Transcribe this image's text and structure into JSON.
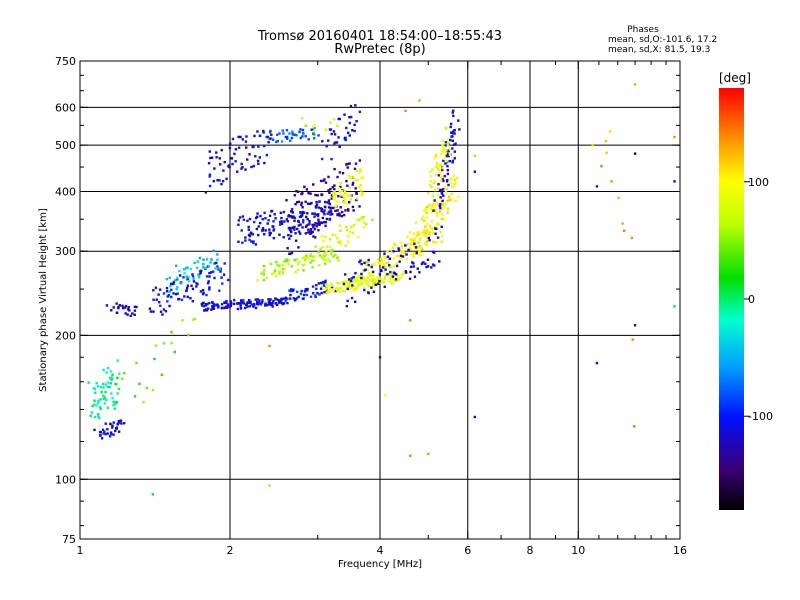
{
  "chart_data": {
    "type": "scatter",
    "title": "Tromsø 20160401 18:54:00–18:55:43",
    "subtitle": "RwPretec (8p)",
    "xlabel": "Frequency [MHz]",
    "ylabel": "Stationary phase Virtual Height [km]",
    "x_scale": "log",
    "y_scale": "log",
    "xlim": [
      1,
      16
    ],
    "ylim": [
      75,
      750
    ],
    "x_ticks": [
      1,
      2,
      4,
      6,
      8,
      10,
      16
    ],
    "x_tick_labels": [
      "1",
      "2",
      "4",
      "6",
      "8",
      "10",
      "16"
    ],
    "y_ticks": [
      75,
      100,
      200,
      300,
      400,
      500,
      600,
      750
    ],
    "y_tick_labels": [
      "75",
      "100",
      "200",
      "300",
      "400",
      "500",
      "600",
      "750"
    ],
    "grid": true,
    "stats": {
      "heading": "Phases",
      "line_o": "mean, sd,O:-101.6, 17.2",
      "line_x": "mean, sd,X:  81.5, 19.3"
    },
    "colorbar": {
      "label": "[deg]",
      "range": [
        -180,
        180
      ],
      "ticks": [
        100,
        0,
        -100
      ],
      "tick_labels": [
        "100",
        "0",
        "-100"
      ],
      "placement": "right"
    },
    "color_encoding": "phase [deg]",
    "traces": [
      {
        "x_start": 1.05,
        "x_end": 1.2,
        "h_start": 145,
        "h_end": 160,
        "h_scatter": 18,
        "phase": -10,
        "n": 60
      },
      {
        "x_start": 1.08,
        "x_end": 1.22,
        "h_start": 125,
        "h_end": 130,
        "h_scatter": 4,
        "phase": -110,
        "n": 35
      },
      {
        "x_start": 1.15,
        "x_end": 1.3,
        "h_start": 230,
        "h_end": 225,
        "h_scatter": 6,
        "phase": -120,
        "n": 25
      },
      {
        "x_start": 1.4,
        "x_end": 1.95,
        "h_start": 235,
        "h_end": 270,
        "h_scatter": 18,
        "phase": -105,
        "n": 90
      },
      {
        "x_start": 1.5,
        "x_end": 1.9,
        "h_start": 260,
        "h_end": 290,
        "h_scatter": 15,
        "phase": -40,
        "n": 40
      },
      {
        "x_start": 1.75,
        "x_end": 2.6,
        "h_start": 230,
        "h_end": 235,
        "h_scatter": 5,
        "phase": -110,
        "n": 120
      },
      {
        "x_start": 2.6,
        "x_end": 3.2,
        "h_start": 240,
        "h_end": 255,
        "h_scatter": 8,
        "phase": -100,
        "n": 50
      },
      {
        "x_start": 2.3,
        "x_end": 3.3,
        "h_start": 270,
        "h_end": 295,
        "h_scatter": 10,
        "phase": 60,
        "n": 80
      },
      {
        "x_start": 3.1,
        "x_end": 4.4,
        "h_start": 250,
        "h_end": 265,
        "h_scatter": 6,
        "phase": 85,
        "n": 120
      },
      {
        "x_start": 3.5,
        "x_end": 5.3,
        "h_start": 260,
        "h_end": 330,
        "h_scatter": 14,
        "phase": 95,
        "n": 120
      },
      {
        "x_start": 4.6,
        "x_end": 5.7,
        "h_start": 300,
        "h_end": 410,
        "h_scatter": 25,
        "phase": 100,
        "n": 90
      },
      {
        "x_start": 5.2,
        "x_end": 5.7,
        "h_start": 350,
        "h_end": 560,
        "h_scatter": 40,
        "phase": -110,
        "n": 70
      },
      {
        "x_start": 5.0,
        "x_end": 5.5,
        "h_start": 380,
        "h_end": 520,
        "h_scatter": 35,
        "phase": 95,
        "n": 50
      },
      {
        "x_start": 3.4,
        "x_end": 5.2,
        "h_start": 255,
        "h_end": 300,
        "h_scatter": 25,
        "phase": -115,
        "n": 90
      },
      {
        "x_start": 2.1,
        "x_end": 3.2,
        "h_start": 330,
        "h_end": 360,
        "h_scatter": 25,
        "phase": -110,
        "n": 140
      },
      {
        "x_start": 2.6,
        "x_end": 3.6,
        "h_start": 340,
        "h_end": 420,
        "h_scatter": 50,
        "phase": -130,
        "n": 140
      },
      {
        "x_start": 3.2,
        "x_end": 3.7,
        "h_start": 380,
        "h_end": 430,
        "h_scatter": 30,
        "phase": 90,
        "n": 45
      },
      {
        "x_start": 3.0,
        "x_end": 3.8,
        "h_start": 310,
        "h_end": 340,
        "h_scatter": 20,
        "phase": 75,
        "n": 40
      },
      {
        "x_start": 2.4,
        "x_end": 3.0,
        "h_start": 520,
        "h_end": 530,
        "h_scatter": 15,
        "phase": -75,
        "n": 40
      },
      {
        "x_start": 1.8,
        "x_end": 2.4,
        "h_start": 440,
        "h_end": 510,
        "h_scatter": 45,
        "phase": -110,
        "n": 70
      },
      {
        "x_start": 3.1,
        "x_end": 3.6,
        "h_start": 500,
        "h_end": 580,
        "h_scatter": 40,
        "phase": -110,
        "n": 35
      },
      {
        "x_start": 2.8,
        "x_end": 3.3,
        "h_start": 550,
        "h_end": 560,
        "h_scatter": 20,
        "phase": 70,
        "n": 10
      },
      {
        "x_start": 10.8,
        "x_end": 13.2,
        "h_start": 600,
        "h_end": 140,
        "h_scatter": 120,
        "phase": 130,
        "n": 12
      },
      {
        "x_start": 1.2,
        "x_end": 1.7,
        "h_start": 150,
        "h_end": 200,
        "h_scatter": 25,
        "phase": 40,
        "n": 20
      }
    ],
    "isolated_points": [
      {
        "x": 1.4,
        "y": 93,
        "phase": 10
      },
      {
        "x": 2.4,
        "y": 97,
        "phase": 120
      },
      {
        "x": 2.4,
        "y": 190,
        "phase": 140
      },
      {
        "x": 4.1,
        "y": 150,
        "phase": 100
      },
      {
        "x": 4.0,
        "y": 180,
        "phase": -120
      },
      {
        "x": 4.6,
        "y": 112,
        "phase": 140
      },
      {
        "x": 5.0,
        "y": 113,
        "phase": 40
      },
      {
        "x": 4.6,
        "y": 215,
        "phase": 30
      },
      {
        "x": 4.5,
        "y": 590,
        "phase": 140
      },
      {
        "x": 4.8,
        "y": 620,
        "phase": 130
      },
      {
        "x": 6.2,
        "y": 135,
        "phase": -120
      },
      {
        "x": 6.2,
        "y": 440,
        "phase": -100
      },
      {
        "x": 6.2,
        "y": 475,
        "phase": 120
      },
      {
        "x": 10.9,
        "y": 410,
        "phase": -100
      },
      {
        "x": 10.9,
        "y": 175,
        "phase": -100
      },
      {
        "x": 13.0,
        "y": 670,
        "phase": 130
      },
      {
        "x": 13.0,
        "y": 480,
        "phase": -160
      },
      {
        "x": 13.0,
        "y": 210,
        "phase": -130
      },
      {
        "x": 15.6,
        "y": 520,
        "phase": 140
      },
      {
        "x": 15.6,
        "y": 420,
        "phase": -100
      },
      {
        "x": 15.6,
        "y": 230,
        "phase": 10
      }
    ]
  }
}
